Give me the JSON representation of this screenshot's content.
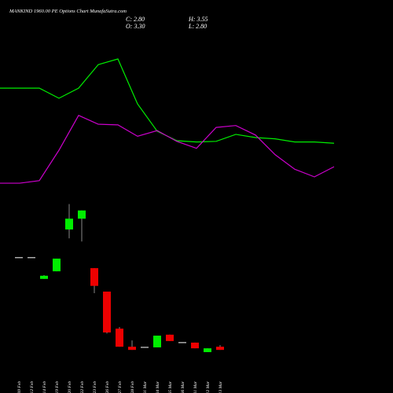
{
  "chart_data": [
    {
      "type": "line",
      "ylim": [
        -4,
        58
      ],
      "series": [
        {
          "color": "#00ee00",
          "values": [
            44.1,
            44.1,
            44.1,
            42.5,
            44.1,
            47.8,
            48.7,
            41.6,
            37.3,
            35.8,
            35.6,
            35.7,
            36.8,
            36.3,
            36.1,
            35.6,
            35.6,
            35.4
          ]
        },
        {
          "color": "#cc00cc",
          "values": [
            29.1,
            29.1,
            29.5,
            34.3,
            39.8,
            38.4,
            38.3,
            36.5,
            37.4,
            35.7,
            34.6,
            37.9,
            38.2,
            36.7,
            33.6,
            31.3,
            30.1,
            31.7
          ]
        }
      ]
    },
    {
      "type": "candlestick",
      "title": "MANKIND 1960.00 PE Options Chart MunafaSutra.com",
      "readout": [
        "C: 2.80",
        "O: 3.30",
        "H: 3.55",
        "L: 2.80"
      ],
      "ylim": [
        -4,
        58
      ],
      "up_color": "#00ee00",
      "down_color": "#ee0000",
      "categories": [
        "09 Feb",
        "12 Feb",
        "14 Feb",
        "19 Feb",
        "20 Feb",
        "22 Feb",
        "23 Feb",
        "26 Feb",
        "27 Feb",
        "28 Feb",
        "01 Mar",
        "04 Mar",
        "05 Mar",
        "06 Mar",
        "11 Mar",
        "12 Mar",
        "13 Mar"
      ],
      "open": [
        17.35,
        17.35,
        14.0,
        15.2,
        21.8,
        23.5,
        15.7,
        12.0,
        6.15,
        3.3,
        3.2,
        3.2,
        5.2,
        3.95,
        3.95,
        2.45,
        3.3
      ],
      "high": [
        17.35,
        17.35,
        14.6,
        17.2,
        25.8,
        24.8,
        15.7,
        12.0,
        6.4,
        4.3,
        3.2,
        5.05,
        5.2,
        3.95,
        3.95,
        3.05,
        3.55
      ],
      "low": [
        17.35,
        17.35,
        14.0,
        15.2,
        20.4,
        19.9,
        11.75,
        5.4,
        3.3,
        2.8,
        3.2,
        3.2,
        4.2,
        3.95,
        3.05,
        2.45,
        2.8
      ],
      "close": [
        17.35,
        17.35,
        14.5,
        17.2,
        23.5,
        24.8,
        12.9,
        5.55,
        3.3,
        2.8,
        3.2,
        5.05,
        4.2,
        3.95,
        3.05,
        3.05,
        2.8
      ]
    }
  ]
}
